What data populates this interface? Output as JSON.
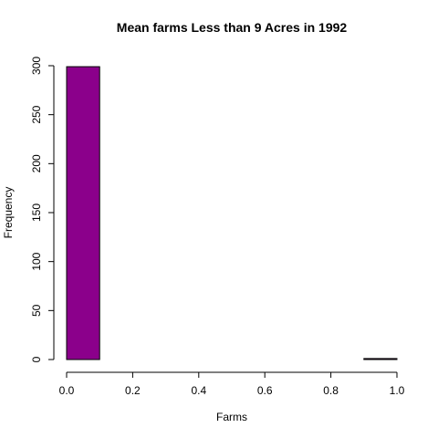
{
  "chart_data": {
    "type": "bar",
    "title": "Mean farms Less than 9 Acres in 1992",
    "xlabel": "Farms",
    "ylabel": "Frequency",
    "bin_edges": [
      0.0,
      0.1,
      0.2,
      0.3,
      0.4,
      0.5,
      0.6,
      0.7,
      0.8,
      0.9,
      1.0
    ],
    "values": [
      299,
      0,
      0,
      0,
      0,
      0,
      0,
      0,
      0,
      1
    ],
    "xlim": [
      0,
      1
    ],
    "ylim": [
      0,
      300
    ],
    "x_ticks": [
      0.0,
      0.2,
      0.4,
      0.6,
      0.8,
      1.0
    ],
    "x_tick_labels": [
      "0.0",
      "0.2",
      "0.4",
      "0.6",
      "0.8",
      "1.0"
    ],
    "y_ticks": [
      0,
      50,
      100,
      150,
      200,
      250,
      300
    ],
    "y_tick_labels": [
      "0",
      "50",
      "100",
      "150",
      "200",
      "250",
      "300"
    ],
    "bar_color": "#8B008B",
    "grid": false,
    "legend": "none"
  }
}
